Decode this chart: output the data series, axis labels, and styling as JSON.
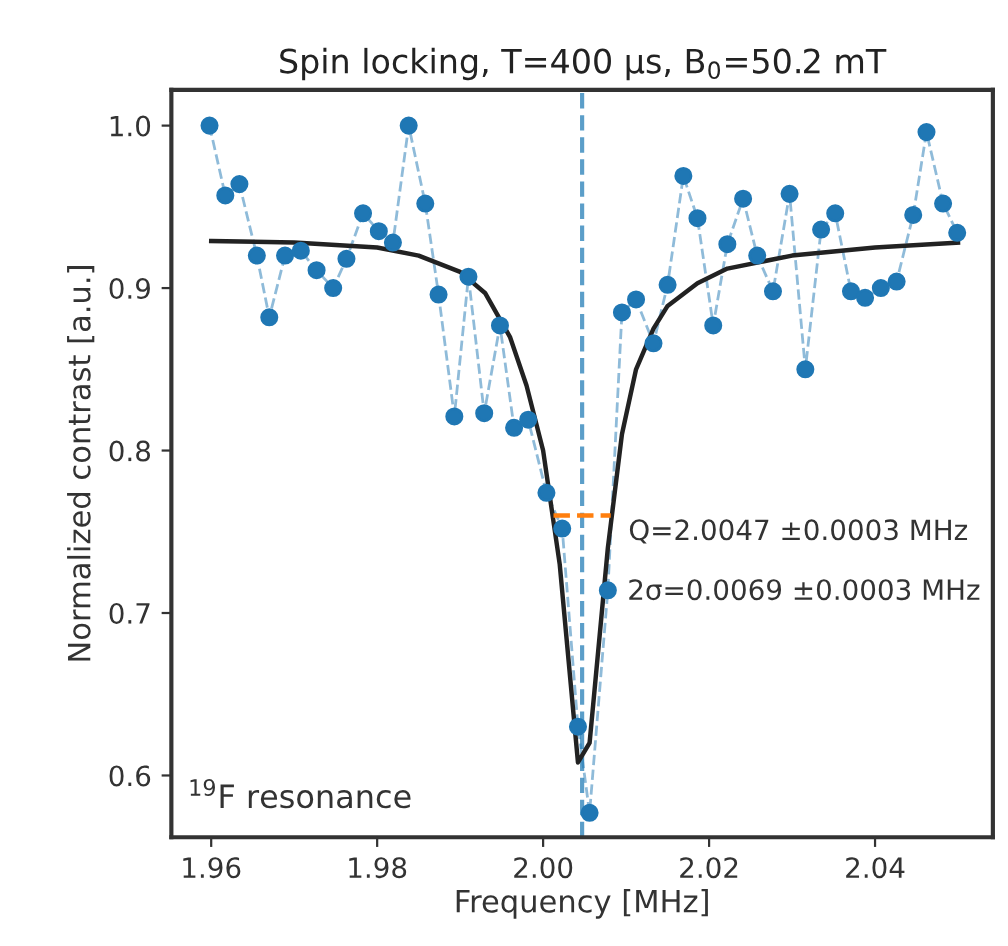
{
  "chart_data": {
    "type": "line",
    "title": "Spin locking, T=400 μs, B$_{0}$=50.2 mT",
    "xlabel": "Frequency [MHz]",
    "ylabel": "Normalized contrast [a.u.]",
    "xlim": [
      1.9552,
      2.0542
    ],
    "ylim": [
      0.562,
      1.022
    ],
    "xticks": [
      {
        "value": 1.96,
        "label": "1.96"
      },
      {
        "value": 1.98,
        "label": "1.98"
      },
      {
        "value": 2.0,
        "label": "2.00"
      },
      {
        "value": 2.02,
        "label": "2.02"
      },
      {
        "value": 2.04,
        "label": "2.04"
      }
    ],
    "yticks": [
      0.6,
      0.7,
      0.8,
      0.9,
      {
        "value": 1.0,
        "label": "1.0"
      }
    ],
    "grid": false,
    "legend": false,
    "series": [
      {
        "color": "#1f77b4",
        "marker": "circle",
        "line_style": "dashed",
        "x": [
          1.9598,
          1.9617,
          1.9634,
          1.9655,
          1.967,
          1.9689,
          1.9708,
          1.9727,
          1.9747,
          1.9763,
          1.9783,
          1.9802,
          1.9819,
          1.9838,
          1.9858,
          1.9874,
          1.9893,
          1.991,
          1.9929,
          1.9948,
          1.9965,
          1.9982,
          2.0004,
          2.0023,
          2.0042,
          2.0056,
          2.0078,
          2.0095,
          2.0112,
          2.0133,
          2.015,
          2.0169,
          2.0186,
          2.0205,
          2.0222,
          2.0241,
          2.0258,
          2.0277,
          2.0297,
          2.0316,
          2.0335,
          2.0352,
          2.0371,
          2.0388,
          2.0407,
          2.0426,
          2.0446,
          2.0462,
          2.0482,
          2.0499
        ],
        "values": [
          1.0,
          0.957,
          0.964,
          0.92,
          0.882,
          0.92,
          0.923,
          0.911,
          0.9,
          0.918,
          0.946,
          0.935,
          0.928,
          1.0,
          0.952,
          0.896,
          0.821,
          0.907,
          0.823,
          0.877,
          0.814,
          0.819,
          0.774,
          0.752,
          0.63,
          0.577,
          0.714,
          0.885,
          0.893,
          0.866,
          0.902,
          0.969,
          0.943,
          0.877,
          0.927,
          0.955,
          0.92,
          0.898,
          0.958,
          0.85,
          0.936,
          0.946,
          0.898,
          0.894,
          0.9,
          0.904,
          0.945,
          0.996,
          0.952,
          0.934
        ]
      },
      {
        "color": "#222222",
        "marker": "none",
        "line_style": "solid",
        "x": [
          1.96,
          1.97,
          1.98,
          1.985,
          1.99,
          1.993,
          1.996,
          1.998,
          2.0,
          2.002,
          2.0042,
          2.0056,
          2.0078,
          2.0095,
          2.0112,
          2.0133,
          2.015,
          2.0186,
          2.0222,
          2.03,
          2.04,
          2.05
        ],
        "values": [
          0.929,
          0.928,
          0.925,
          0.92,
          0.91,
          0.897,
          0.87,
          0.84,
          0.8,
          0.73,
          0.608,
          0.62,
          0.74,
          0.81,
          0.85,
          0.875,
          0.889,
          0.903,
          0.912,
          0.92,
          0.925,
          0.928
        ]
      },
      {
        "color": "#ff7f0e",
        "marker": "none",
        "line_style": "dashed",
        "x": [
          2.00125,
          2.00815
        ],
        "values": [
          0.76,
          0.76
        ]
      }
    ],
    "ref_lines": [
      {
        "axis": "x",
        "value": 2.0047,
        "color": "#5b9ec9",
        "line_style": "dashed"
      }
    ],
    "annotations": [
      "Q=2.0047 ±0.0003 MHz",
      "2σ=0.0069 ±0.0003 MHz",
      "$^{19}$F resonance"
    ]
  }
}
